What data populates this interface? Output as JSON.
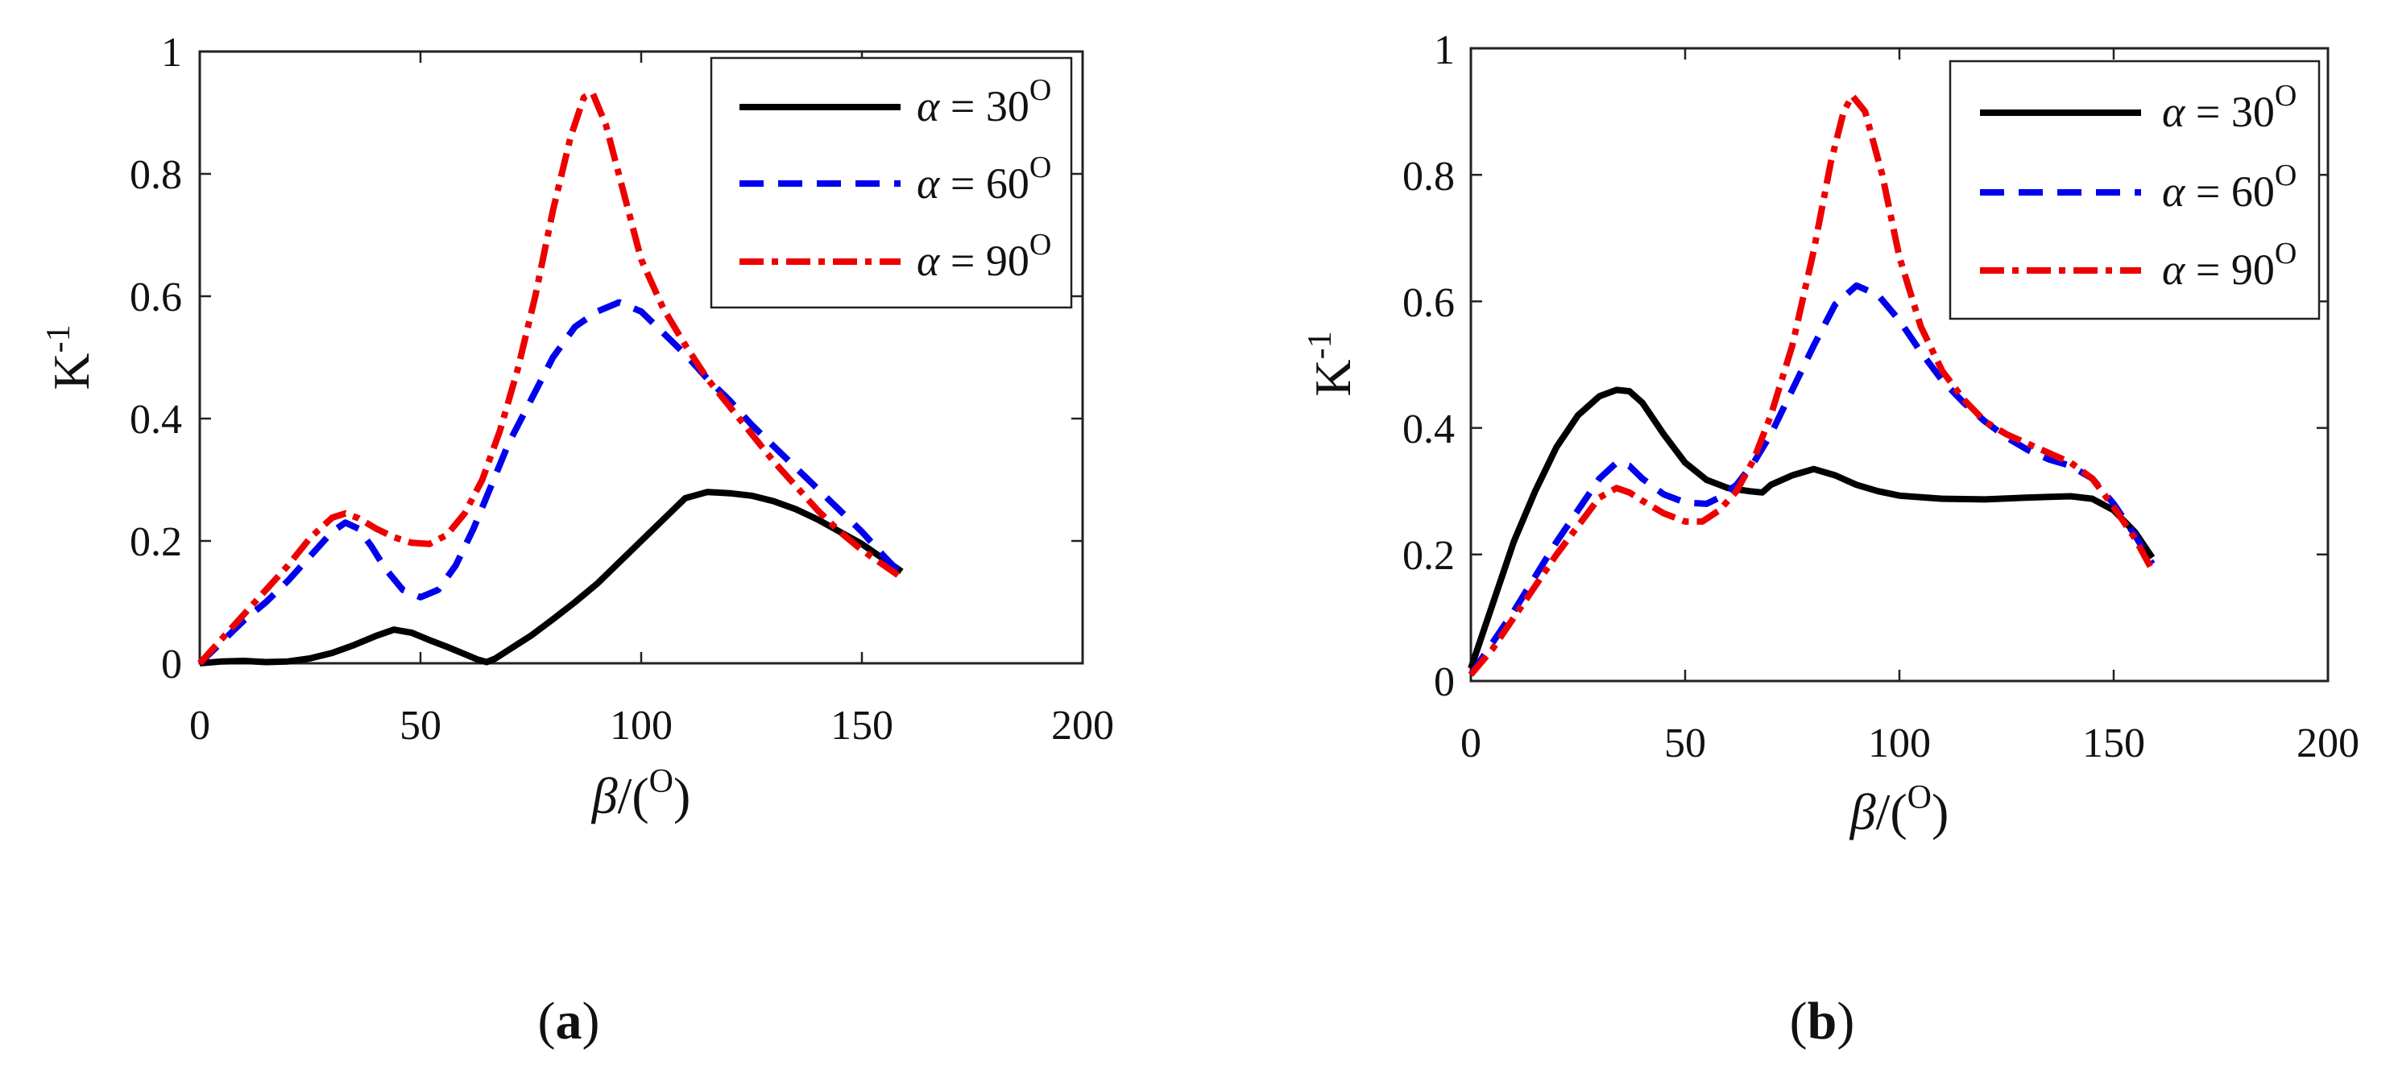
{
  "chart_data": [
    {
      "panel": "(a)",
      "panel_letter": "a",
      "type": "line",
      "xlabel_sym": "β",
      "xlabel_unit": "/(",
      "xlabel_unit_sup": "O",
      "xlabel_close": ")",
      "ylabel_base": "K",
      "ylabel_sup": "-1",
      "xlim": [
        0,
        200
      ],
      "ylim": [
        0,
        1
      ],
      "xticks": [
        0,
        50,
        100,
        150,
        200
      ],
      "yticks": [
        0,
        0.2,
        0.4,
        0.6,
        0.8,
        1
      ],
      "xtick_labels": [
        "0",
        "50",
        "100",
        "150",
        "200"
      ],
      "ytick_labels": [
        "0",
        "0.2",
        "0.4",
        "0.6",
        "0.8",
        "1"
      ],
      "legend_position": "top-right",
      "series": [
        {
          "name": "α = 30O",
          "sym": "α",
          "eq": " = 30",
          "sup": "O",
          "color": "#000000",
          "style": "solid",
          "x": [
            0,
            5,
            10,
            15,
            20,
            25,
            30,
            35,
            40,
            44,
            48,
            52,
            56,
            60,
            63,
            65,
            67,
            70,
            75,
            80,
            85,
            90,
            95,
            100,
            105,
            110,
            115,
            120,
            125,
            130,
            135,
            140,
            145,
            150,
            155,
            159
          ],
          "y": [
            0,
            0.003,
            0.004,
            0.002,
            0.003,
            0.008,
            0.017,
            0.03,
            0.045,
            0.055,
            0.05,
            0.038,
            0.027,
            0.015,
            0.006,
            0.002,
            0.008,
            0.022,
            0.045,
            0.072,
            0.1,
            0.13,
            0.165,
            0.2,
            0.235,
            0.27,
            0.28,
            0.278,
            0.274,
            0.265,
            0.252,
            0.235,
            0.215,
            0.195,
            0.17,
            0.15
          ]
        },
        {
          "name": "α = 60O",
          "sym": "α",
          "eq": " = 60",
          "sup": "O",
          "color": "#0000ee",
          "style": "dash",
          "x": [
            0,
            5,
            10,
            15,
            20,
            25,
            30,
            33,
            36,
            39,
            42,
            46,
            50,
            54,
            58,
            62,
            66,
            70,
            75,
            80,
            85,
            90,
            95,
            100,
            105,
            110,
            115,
            120,
            125,
            130,
            135,
            140,
            145,
            150,
            155,
            159
          ],
          "y": [
            0,
            0.035,
            0.07,
            0.1,
            0.135,
            0.175,
            0.215,
            0.23,
            0.22,
            0.19,
            0.155,
            0.12,
            0.108,
            0.12,
            0.16,
            0.22,
            0.29,
            0.36,
            0.43,
            0.5,
            0.55,
            0.575,
            0.59,
            0.575,
            0.54,
            0.505,
            0.465,
            0.43,
            0.39,
            0.355,
            0.32,
            0.285,
            0.25,
            0.215,
            0.175,
            0.145
          ]
        },
        {
          "name": "α = 90O",
          "sym": "α",
          "eq": " = 90",
          "sup": "O",
          "color": "#ee0000",
          "style": "dashdot",
          "x": [
            0,
            5,
            10,
            15,
            20,
            25,
            30,
            33,
            36,
            40,
            44,
            48,
            52,
            56,
            60,
            64,
            68,
            72,
            76,
            80,
            84,
            87,
            89,
            92,
            96,
            100,
            105,
            110,
            115,
            120,
            125,
            130,
            135,
            140,
            145,
            150,
            155,
            159
          ],
          "y": [
            0,
            0.04,
            0.08,
            0.12,
            0.16,
            0.205,
            0.238,
            0.245,
            0.237,
            0.22,
            0.206,
            0.197,
            0.195,
            0.21,
            0.245,
            0.3,
            0.38,
            0.48,
            0.6,
            0.74,
            0.86,
            0.925,
            0.932,
            0.88,
            0.77,
            0.66,
            0.58,
            0.52,
            0.465,
            0.42,
            0.375,
            0.33,
            0.29,
            0.25,
            0.215,
            0.185,
            0.16,
            0.14
          ]
        }
      ]
    },
    {
      "panel": "(b)",
      "panel_letter": "b",
      "type": "line",
      "xlabel_sym": "β",
      "xlabel_unit": "/(",
      "xlabel_unit_sup": "O",
      "xlabel_close": ")",
      "ylabel_base": "K",
      "ylabel_sup": "-1",
      "xlim": [
        0,
        200
      ],
      "ylim": [
        0,
        1
      ],
      "xticks": [
        0,
        50,
        100,
        150,
        200
      ],
      "yticks": [
        0,
        0.2,
        0.4,
        0.6,
        0.8,
        1
      ],
      "xtick_labels": [
        "0",
        "50",
        "100",
        "150",
        "200"
      ],
      "ytick_labels": [
        "0",
        "0.2",
        "0.4",
        "0.6",
        "0.8",
        "1"
      ],
      "legend_position": "top-right",
      "series": [
        {
          "name": "α = 30O",
          "sym": "α",
          "eq": " = 30",
          "sup": "O",
          "color": "#000000",
          "style": "solid",
          "x": [
            0,
            5,
            10,
            15,
            20,
            25,
            30,
            34,
            37,
            40,
            45,
            50,
            55,
            60,
            65,
            68,
            70,
            75,
            80,
            85,
            90,
            95,
            100,
            110,
            120,
            130,
            140,
            145,
            150,
            155,
            159
          ],
          "y": [
            0.02,
            0.12,
            0.22,
            0.3,
            0.37,
            0.42,
            0.45,
            0.46,
            0.458,
            0.44,
            0.39,
            0.345,
            0.318,
            0.305,
            0.3,
            0.298,
            0.31,
            0.325,
            0.335,
            0.325,
            0.31,
            0.3,
            0.293,
            0.288,
            0.287,
            0.29,
            0.292,
            0.288,
            0.27,
            0.235,
            0.195
          ]
        },
        {
          "name": "α = 60O",
          "sym": "α",
          "eq": " = 60",
          "sup": "O",
          "color": "#0000ee",
          "style": "dash",
          "x": [
            0,
            5,
            10,
            15,
            20,
            25,
            30,
            34,
            37,
            40,
            45,
            50,
            55,
            58,
            62,
            66,
            70,
            75,
            80,
            85,
            90,
            95,
            100,
            105,
            110,
            115,
            120,
            125,
            130,
            135,
            140,
            145,
            150,
            155,
            159
          ],
          "y": [
            0.01,
            0.06,
            0.11,
            0.165,
            0.22,
            0.27,
            0.32,
            0.345,
            0.34,
            0.32,
            0.295,
            0.282,
            0.28,
            0.29,
            0.31,
            0.345,
            0.39,
            0.46,
            0.53,
            0.595,
            0.625,
            0.61,
            0.57,
            0.52,
            0.475,
            0.44,
            0.41,
            0.385,
            0.365,
            0.35,
            0.34,
            0.32,
            0.28,
            0.23,
            0.185
          ]
        },
        {
          "name": "α = 90O",
          "sym": "α",
          "eq": " = 90",
          "sup": "O",
          "color": "#ee0000",
          "style": "dashdot",
          "x": [
            0,
            5,
            10,
            15,
            20,
            25,
            30,
            34,
            37,
            40,
            45,
            50,
            54,
            58,
            62,
            66,
            70,
            75,
            80,
            84,
            87,
            89,
            92,
            96,
            100,
            105,
            110,
            115,
            120,
            125,
            130,
            135,
            140,
            145,
            150,
            155,
            159
          ],
          "y": [
            0.01,
            0.05,
            0.1,
            0.15,
            0.2,
            0.245,
            0.29,
            0.305,
            0.298,
            0.285,
            0.265,
            0.252,
            0.252,
            0.27,
            0.3,
            0.35,
            0.42,
            0.53,
            0.68,
            0.82,
            0.9,
            0.925,
            0.9,
            0.8,
            0.67,
            0.56,
            0.49,
            0.445,
            0.41,
            0.39,
            0.375,
            0.36,
            0.345,
            0.32,
            0.275,
            0.225,
            0.175
          ]
        }
      ]
    }
  ]
}
